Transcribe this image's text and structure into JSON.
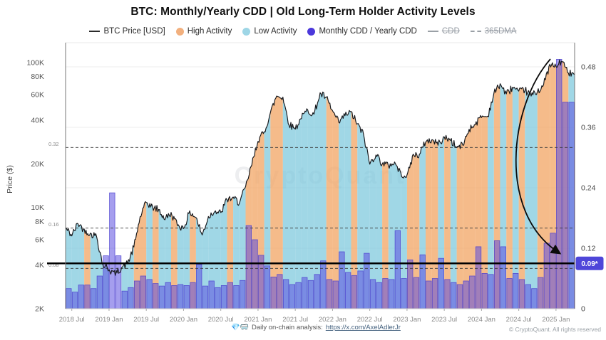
{
  "title": "BTC: Monthly/Yearly CDD | Old Long-Term Holder Activity Levels",
  "legend": {
    "items": [
      {
        "label": "BTC Price [USD]",
        "swatch": "line",
        "color": "#2b2b2b",
        "active": true
      },
      {
        "label": "High Activity",
        "swatch": "dot",
        "color": "#F2B07E",
        "active": true
      },
      {
        "label": "Low Activity",
        "swatch": "dot",
        "color": "#9ED6E6",
        "active": true
      },
      {
        "label": "Monthly CDD / Yearly CDD",
        "swatch": "dot",
        "color": "#4B38DB",
        "active": true
      },
      {
        "label": "CDD",
        "swatch": "line",
        "color": "#9aa0a6",
        "active": false
      },
      {
        "label": "365DMA",
        "swatch": "dash",
        "color": "#9aa0a6",
        "active": false
      }
    ]
  },
  "watermark": "CryptoQuant",
  "y_axis": {
    "title": "Price ($)",
    "tick_labels": [
      "100K",
      "80K",
      "60K",
      "40K",
      "20K",
      "10K",
      "8K",
      "6K",
      "4K",
      "2K"
    ],
    "tick_values": [
      100000,
      80000,
      60000,
      40000,
      20000,
      10000,
      8000,
      6000,
      4000,
      2000
    ]
  },
  "right_axis": {
    "tick_labels": [
      "0",
      "0.12",
      "0.24",
      "0.36",
      "0.48"
    ],
    "tick_values": [
      0,
      0.12,
      0.24,
      0.36,
      0.48
    ]
  },
  "x_axis": {
    "tick_labels": [
      "2018 Jul",
      "2019 Jan",
      "2019 Jul",
      "2020 Jan",
      "2020 Jul",
      "2021 Jan",
      "2021 Jul",
      "2022 Jan",
      "2022 Jul",
      "2023 Jan",
      "2023 Jul",
      "2024 Jan",
      "2024 Jul",
      "2025 Jan"
    ],
    "tick_month_index": [
      1,
      7,
      13,
      19,
      25,
      31,
      37,
      43,
      49,
      55,
      61,
      67,
      73,
      79
    ]
  },
  "levels": {
    "dashed": [
      {
        "value": 0.32,
        "label": "0.32"
      },
      {
        "value": 0.16,
        "label": "0.16"
      },
      {
        "value": 0.08,
        "label": "0.08"
      }
    ],
    "solid": {
      "value": 0.09,
      "badge_label": "0.09*"
    }
  },
  "footer": {
    "emoji": "💎🥽",
    "text": "Daily on-chain analysis:",
    "link_text": "https://x.com/AxelAdlerJr",
    "copyright": "© CryptoQuant. All rights reserved"
  },
  "colors": {
    "high_activity_fill": "#F2A869",
    "low_activity_fill": "#7CC8DD",
    "cdd_bar_fill": "#5B4FE0",
    "cdd_bar_stroke": "#4A3ECF",
    "price_line": "#14161A",
    "level_line": "#000000",
    "badge_fill": "#4E46D9",
    "grid": "#ECECEC"
  },
  "chart_data": {
    "type": "mixed",
    "subtypes": [
      "line",
      "area",
      "bar"
    ],
    "x_start_month": "2018-06",
    "x_end_month": "2025-03",
    "months_count": 82,
    "left_axis": {
      "label": "Price ($)",
      "scale": "log",
      "range": [
        2000,
        100000
      ]
    },
    "right_axis": {
      "label": "Monthly CDD / Yearly CDD",
      "scale": "linear",
      "range": [
        0,
        0.48
      ]
    },
    "series": [
      {
        "name": "BTC Price [USD]",
        "type": "line",
        "axis": "left",
        "monthly_values_usd": [
          6400,
          7750,
          7030,
          6600,
          6320,
          4020,
          3740,
          3440,
          3850,
          4100,
          5320,
          8570,
          10820,
          10090,
          9630,
          8290,
          9150,
          7560,
          7190,
          9350,
          8530,
          6440,
          8630,
          9450,
          9140,
          11350,
          11650,
          10780,
          13800,
          19700,
          29000,
          33110,
          45140,
          58780,
          57750,
          37330,
          35040,
          41550,
          47110,
          43790,
          61320,
          57010,
          46220,
          38480,
          43190,
          45540,
          37650,
          31790,
          19920,
          23300,
          20050,
          19430,
          20490,
          17160,
          16540,
          23130,
          23140,
          28470,
          29230,
          27220,
          30480,
          29230,
          25930,
          26960,
          34650,
          37720,
          42270,
          42580,
          61200,
          71330,
          60640,
          67530,
          62680,
          64620,
          58970,
          63330,
          70220,
          96450,
          93430,
          102400,
          84380,
          82550
        ]
      },
      {
        "name": "Monthly CDD / Yearly CDD",
        "type": "bar",
        "axis": "right",
        "values": [
          0.04,
          0.033,
          0.047,
          0.047,
          0.04,
          0.065,
          0.105,
          0.23,
          0.105,
          0.035,
          0.042,
          0.055,
          0.065,
          0.058,
          0.05,
          0.045,
          0.052,
          0.046,
          0.048,
          0.046,
          0.052,
          0.088,
          0.045,
          0.055,
          0.042,
          0.046,
          0.052,
          0.046,
          0.056,
          0.165,
          0.137,
          0.106,
          0.085,
          0.063,
          0.068,
          0.058,
          0.048,
          0.052,
          0.062,
          0.056,
          0.068,
          0.095,
          0.058,
          0.055,
          0.113,
          0.072,
          0.066,
          0.075,
          0.11,
          0.058,
          0.052,
          0.06,
          0.058,
          0.155,
          0.06,
          0.097,
          0.062,
          0.107,
          0.055,
          0.06,
          0.1,
          0.058,
          0.052,
          0.048,
          0.055,
          0.065,
          0.123,
          0.07,
          0.068,
          0.135,
          0.123,
          0.06,
          0.07,
          0.058,
          0.048,
          0.04,
          0.062,
          0.13,
          0.15,
          0.495,
          0.41,
          0.41
        ]
      },
      {
        "name": "Activity",
        "type": "area-classification",
        "values": [
          "low",
          "low",
          "low",
          "high",
          "low",
          "low",
          "low",
          "none",
          "none",
          "low",
          "low",
          "high",
          "high",
          "low",
          "high",
          "low",
          "low",
          "high",
          "low",
          "low",
          "high",
          "low",
          "low",
          "low",
          "low",
          "low",
          "high",
          "low",
          "low",
          "high",
          "high",
          "high",
          "low",
          "high",
          "high",
          "low",
          "low",
          "low",
          "low",
          "low",
          "low",
          "low",
          "high",
          "high",
          "low",
          "low",
          "high",
          "low",
          "low",
          "low",
          "low",
          "high",
          "low",
          "low",
          "low",
          "high",
          "high",
          "low",
          "high",
          "high",
          "low",
          "high",
          "low",
          "high",
          "high",
          "high",
          "high",
          "high",
          "low",
          "high",
          "low",
          "high",
          "low",
          "high",
          "low",
          "low",
          "high",
          "high",
          "high",
          "high",
          "high",
          "low"
        ]
      }
    ],
    "annotations": {
      "dashed_levels": [
        0.32,
        0.16,
        0.08
      ],
      "current_level": 0.09,
      "current_level_label": "0.09*",
      "arrow": "curved arrow from 2025-01 price peak down to current level badge"
    }
  }
}
